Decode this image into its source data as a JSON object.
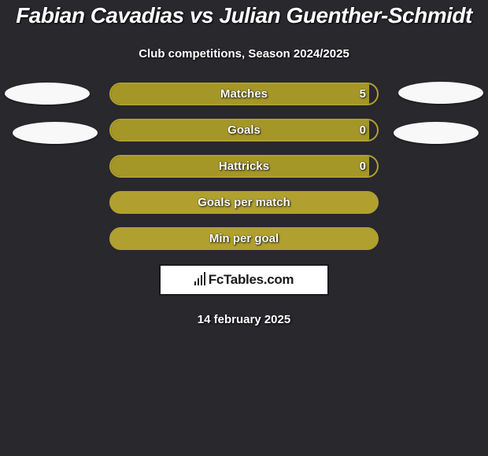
{
  "title": "Fabian Cavadias vs Julian Guenther-Schmidt",
  "subtitle": "Club competitions, Season 2024/2025",
  "date": "14 february 2025",
  "logo_text": "FcTables.com",
  "colors": {
    "background": "#28282d",
    "bar_primary": "#b0a02f",
    "bar_primary_fill": "#a59628",
    "bar_full_border": "#b0a02f",
    "bar_full_fill": "#b0a02f",
    "ellipse": "#f8f8f8",
    "text": "#ffffff"
  },
  "stats": [
    {
      "label": "Matches",
      "value": "5",
      "fill_pct": 97,
      "style": "partial"
    },
    {
      "label": "Goals",
      "value": "0",
      "fill_pct": 97,
      "style": "partial"
    },
    {
      "label": "Hattricks",
      "value": "0",
      "fill_pct": 97,
      "style": "partial"
    },
    {
      "label": "Goals per match",
      "value": "",
      "fill_pct": 100,
      "style": "full"
    },
    {
      "label": "Min per goal",
      "value": "",
      "fill_pct": 100,
      "style": "full"
    }
  ]
}
